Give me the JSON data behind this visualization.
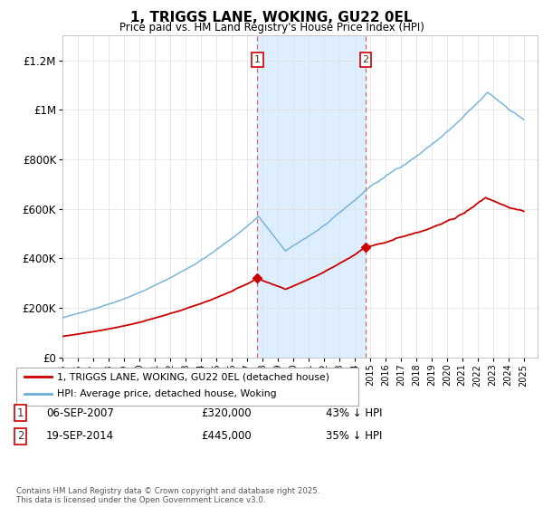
{
  "title": "1, TRIGGS LANE, WOKING, GU22 0EL",
  "subtitle": "Price paid vs. HM Land Registry's House Price Index (HPI)",
  "legend_line1": "1, TRIGGS LANE, WOKING, GU22 0EL (detached house)",
  "legend_line2": "HPI: Average price, detached house, Woking",
  "annotation1_label": "1",
  "annotation1_date": "06-SEP-2007",
  "annotation1_price": "£320,000",
  "annotation1_hpi": "43% ↓ HPI",
  "annotation2_label": "2",
  "annotation2_date": "19-SEP-2014",
  "annotation2_price": "£445,000",
  "annotation2_hpi": "35% ↓ HPI",
  "footnote": "Contains HM Land Registry data © Crown copyright and database right 2025.\nThis data is licensed under the Open Government Licence v3.0.",
  "hpi_color": "#6baed6",
  "price_color": "#cc0000",
  "highlight_color": "#ddeeff",
  "ylim": [
    0,
    1300000
  ],
  "yticks": [
    0,
    200000,
    400000,
    600000,
    800000,
    1000000,
    1200000
  ],
  "xlim_start": 1995.0,
  "xlim_end": 2025.9,
  "sale1_x": 2007.68,
  "sale2_x": 2014.72,
  "sale1_price": 320000,
  "sale2_price": 445000
}
